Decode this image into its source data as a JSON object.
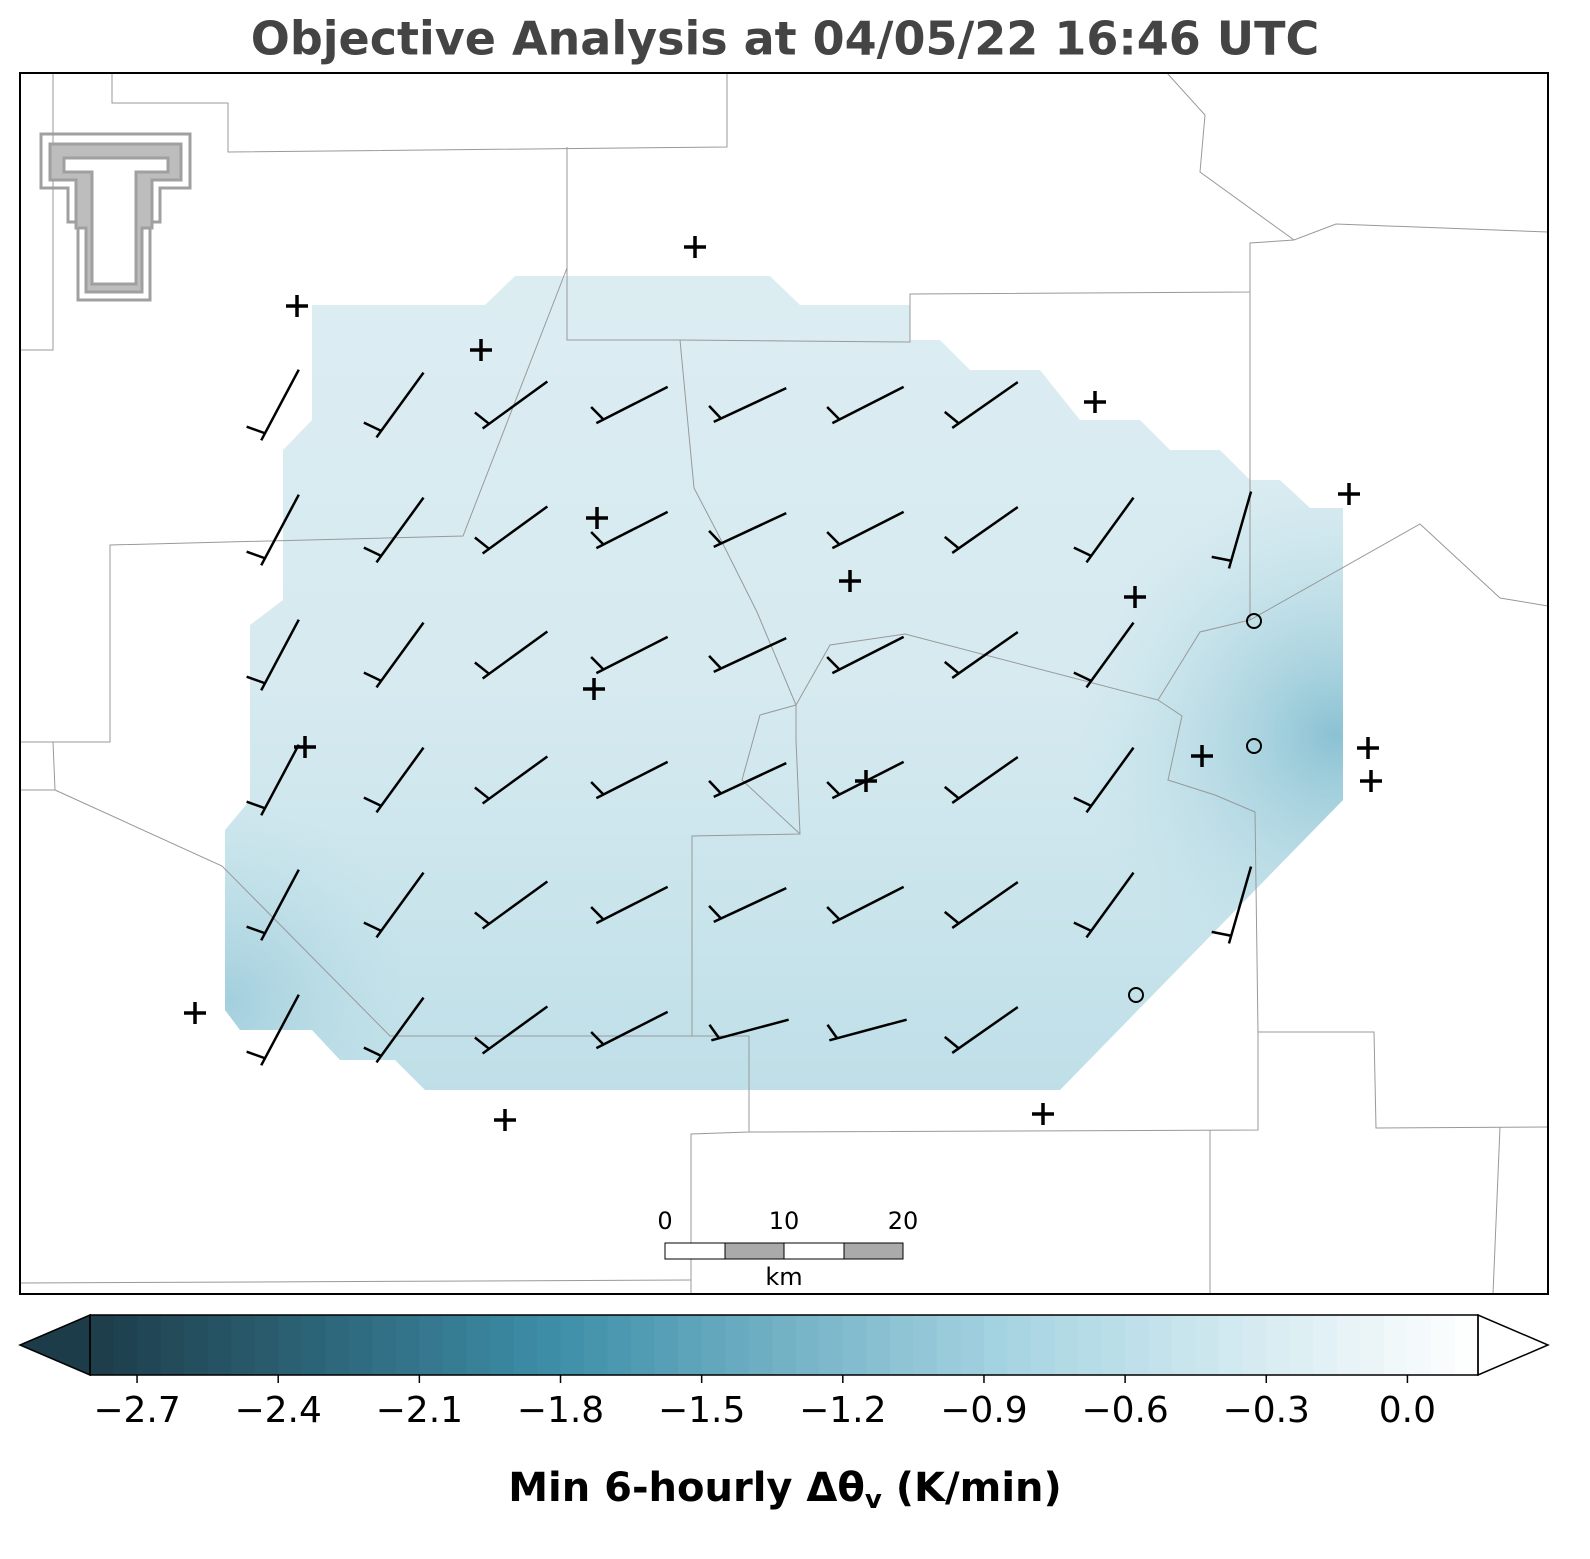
{
  "title": "Objective Analysis at 04/05/22 16:46 UTC",
  "scale_bar": {
    "ticks": [
      0,
      10,
      20
    ],
    "unit": "km"
  },
  "chart_data": {
    "type": "colorbar",
    "xlim": [
      -2.8,
      0.15
    ],
    "xticks": [
      {
        "value": -2.7,
        "label": "−2.7"
      },
      {
        "value": -2.4,
        "label": "−2.4"
      },
      {
        "value": -2.1,
        "label": "−2.1"
      },
      {
        "value": -1.8,
        "label": "−1.8"
      },
      {
        "value": -1.5,
        "label": "−1.5"
      },
      {
        "value": -1.2,
        "label": "−1.2"
      },
      {
        "value": -0.9,
        "label": "−0.9"
      },
      {
        "value": -0.6,
        "label": "−0.6"
      },
      {
        "value": -0.3,
        "label": "−0.3"
      },
      {
        "value": 0.0,
        "label": "0.0"
      }
    ],
    "colors": [
      "#1d3c49",
      "#3d8ea8",
      "#a8d5e2",
      "#ffffff"
    ],
    "label": "Min 6-hourly Δθ",
    "label_subscript": "v",
    "label_suffix": " (K/min)"
  }
}
